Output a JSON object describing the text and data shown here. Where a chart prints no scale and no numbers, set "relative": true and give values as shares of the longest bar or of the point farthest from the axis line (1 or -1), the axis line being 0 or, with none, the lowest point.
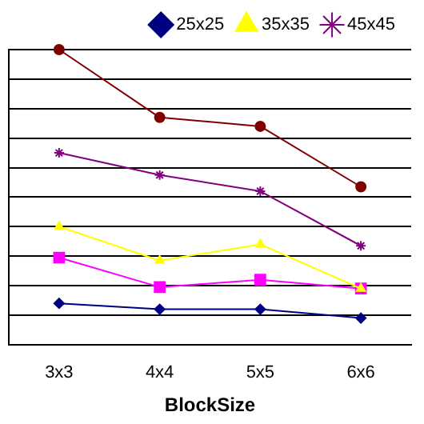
{
  "chart_data": {
    "type": "line",
    "xlabel": "BlockSize",
    "categories": [
      "3x3",
      "4x4",
      "5x5",
      "6x6"
    ],
    "relative": true,
    "grid": "y",
    "legend": "top right",
    "series": [
      {
        "name": "25x25",
        "color": "#000080",
        "marker": "diamond",
        "values": [
          0.14,
          0.12,
          0.12,
          0.09
        ]
      },
      {
        "name": "35x35",
        "color": "#ffff00",
        "marker": "triangle",
        "values": [
          0.4,
          0.285,
          0.34,
          0.19
        ]
      },
      {
        "name": "45x45",
        "color": "#800080",
        "marker": "cross",
        "values": [
          0.65,
          0.575,
          0.52,
          0.335
        ]
      },
      {
        "color": "#ff00ff",
        "marker": "square",
        "values": [
          0.295,
          0.195,
          0.22,
          0.19
        ]
      },
      {
        "color": "#800000",
        "marker": "circle",
        "values": [
          1,
          0.77,
          0.74,
          0.535
        ]
      }
    ]
  }
}
